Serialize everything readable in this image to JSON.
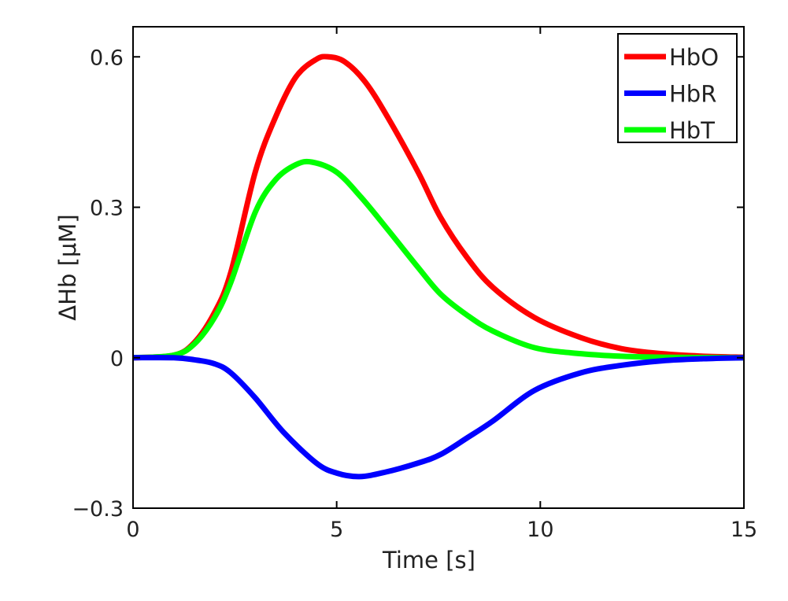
{
  "chart_data": {
    "type": "line",
    "title": "",
    "xlabel": "Time [s]",
    "ylabel": "ΔHb [μM]",
    "xlim": [
      0,
      15
    ],
    "ylim": [
      -0.3,
      0.66
    ],
    "xticks": [
      0,
      5,
      10,
      15
    ],
    "xtick_labels": [
      "0",
      "5",
      "10",
      "15"
    ],
    "yticks": [
      -0.3,
      0,
      0.3,
      0.6
    ],
    "ytick_labels": [
      "−0.3",
      "0",
      "0.3",
      "0.6"
    ],
    "grid": false,
    "legend_placement": "top-right",
    "series": [
      {
        "name": "HbO",
        "color": "#ff0000",
        "x": [
          0,
          1,
          1.5,
          2,
          2.4,
          3,
          3.5,
          4,
          4.5,
          4.8,
          5.2,
          5.7,
          6.25,
          7,
          7.55,
          8.2,
          8.84,
          9.86,
          11,
          12,
          13,
          14,
          15
        ],
        "y": [
          0,
          0.005,
          0.03,
          0.09,
          0.17,
          0.37,
          0.48,
          0.56,
          0.595,
          0.6,
          0.59,
          0.55,
          0.48,
          0.37,
          0.28,
          0.2,
          0.14,
          0.08,
          0.04,
          0.018,
          0.008,
          0.003,
          0.001
        ]
      },
      {
        "name": "HbR",
        "color": "#0000ff",
        "x": [
          0,
          1,
          1.5,
          2,
          2.4,
          3,
          3.69,
          4.5,
          5,
          5.56,
          6.2,
          7,
          7.55,
          8.2,
          8.84,
          9.86,
          11,
          12,
          13,
          14,
          15
        ],
        "y": [
          0,
          0,
          -0.004,
          -0.012,
          -0.03,
          -0.08,
          -0.148,
          -0.21,
          -0.23,
          -0.237,
          -0.228,
          -0.21,
          -0.193,
          -0.16,
          -0.126,
          -0.065,
          -0.03,
          -0.015,
          -0.006,
          -0.002,
          0
        ]
      },
      {
        "name": "HbT",
        "color": "#00ff00",
        "x": [
          0,
          1,
          1.5,
          2,
          2.4,
          3,
          3.5,
          4,
          4.4,
          5,
          5.6,
          6.25,
          7,
          7.55,
          8.2,
          8.84,
          9.86,
          11,
          12,
          13,
          15
        ],
        "y": [
          0,
          0.005,
          0.027,
          0.08,
          0.15,
          0.29,
          0.355,
          0.385,
          0.39,
          0.37,
          0.32,
          0.256,
          0.18,
          0.127,
          0.085,
          0.053,
          0.02,
          0.008,
          0.003,
          0.001,
          0
        ]
      }
    ]
  }
}
